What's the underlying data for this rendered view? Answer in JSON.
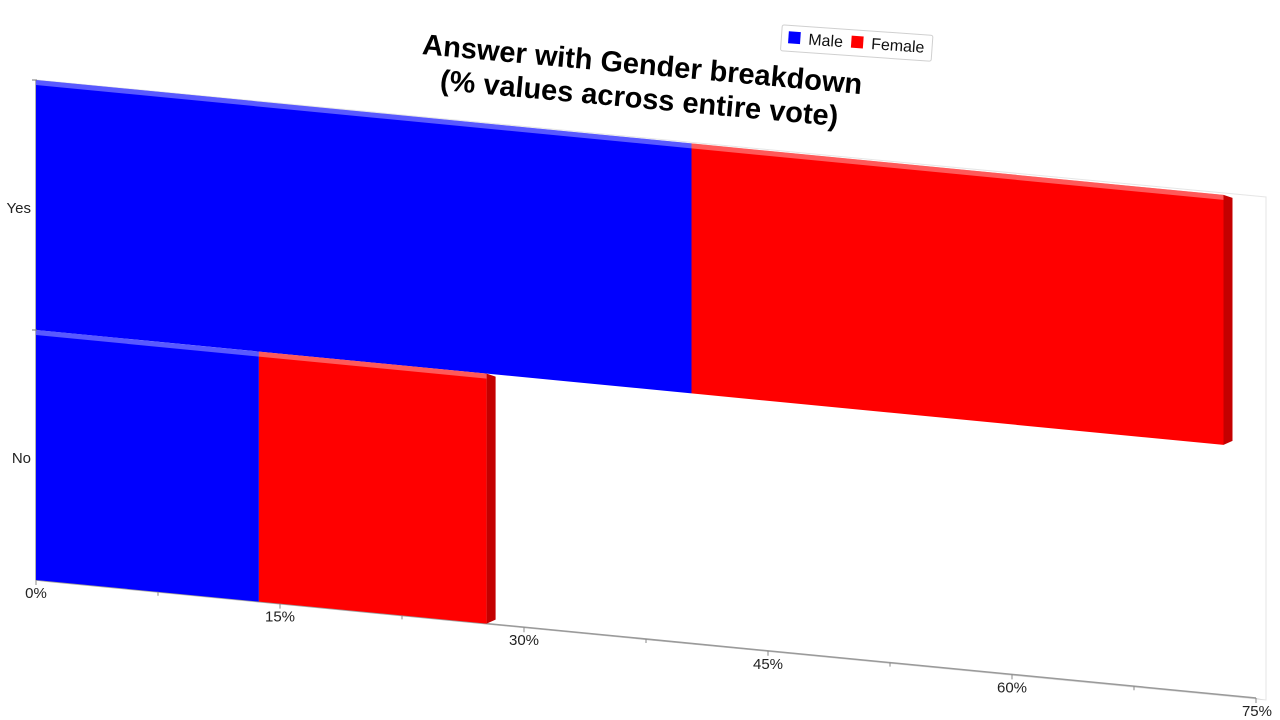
{
  "colors": {
    "male": "#0000ff",
    "female": "#ff0000",
    "female_side": "#c40000",
    "axis": "#a0a0a0",
    "floor": "#d0d0d0"
  },
  "chart_data": {
    "type": "bar",
    "orientation": "horizontal",
    "stacked": true,
    "style": "3d-perspective",
    "title_lines": [
      "Answer with Gender breakdown",
      "(% values across entire vote)"
    ],
    "categories": [
      "Yes",
      "No"
    ],
    "series": [
      {
        "name": "Male",
        "values": [
          40.3,
          13.7
        ],
        "color": "#0000ff"
      },
      {
        "name": "Female",
        "values": [
          32.7,
          14.0
        ],
        "color": "#ff0000"
      }
    ],
    "xlim": [
      0,
      75
    ],
    "x_ticks": [
      "0%",
      "15%",
      "30%",
      "45%",
      "60%",
      "75%"
    ],
    "x_tick_values": [
      0,
      15,
      30,
      45,
      60,
      75
    ],
    "legend": {
      "placement": "top-right",
      "entries": [
        "Male",
        "Female"
      ]
    },
    "grid": false
  }
}
